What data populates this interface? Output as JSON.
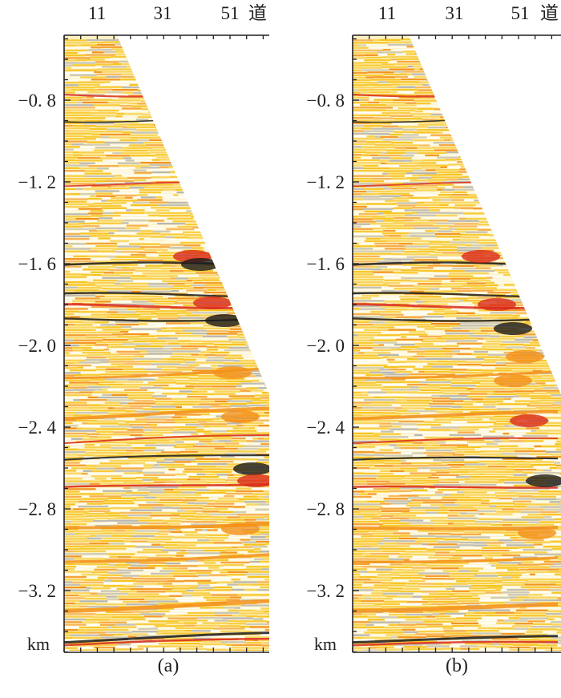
{
  "figure": {
    "panels": [
      {
        "id": "a",
        "caption": "(a)",
        "top_axis": {
          "ticks": [
            "11",
            "31",
            "51"
          ],
          "unit": "道"
        },
        "left_axis": {
          "ticks": [
            "−0. 8",
            "−1. 2",
            "−1. 6",
            "−2. 0",
            "−2. 4",
            "−2. 8",
            "−3. 2"
          ],
          "unit": "km"
        }
      },
      {
        "id": "b",
        "caption": "(b)",
        "top_axis": {
          "ticks": [
            "11",
            "31",
            "51"
          ],
          "unit": "道"
        },
        "left_axis": {
          "ticks": [
            "−0. 8",
            "−1. 2",
            "−1. 6",
            "−2. 0",
            "−2. 4",
            "−2. 8",
            "−3. 2"
          ],
          "unit": "km"
        }
      }
    ],
    "colors": {
      "background": "#ffffff",
      "axis": "#231f20",
      "seismic_yellow": "#f7c21a",
      "seismic_orange": "#f39019",
      "seismic_red": "#d92a1c",
      "seismic_black": "#1a1a1a",
      "seismic_grey": "#b4b4b4"
    }
  }
}
